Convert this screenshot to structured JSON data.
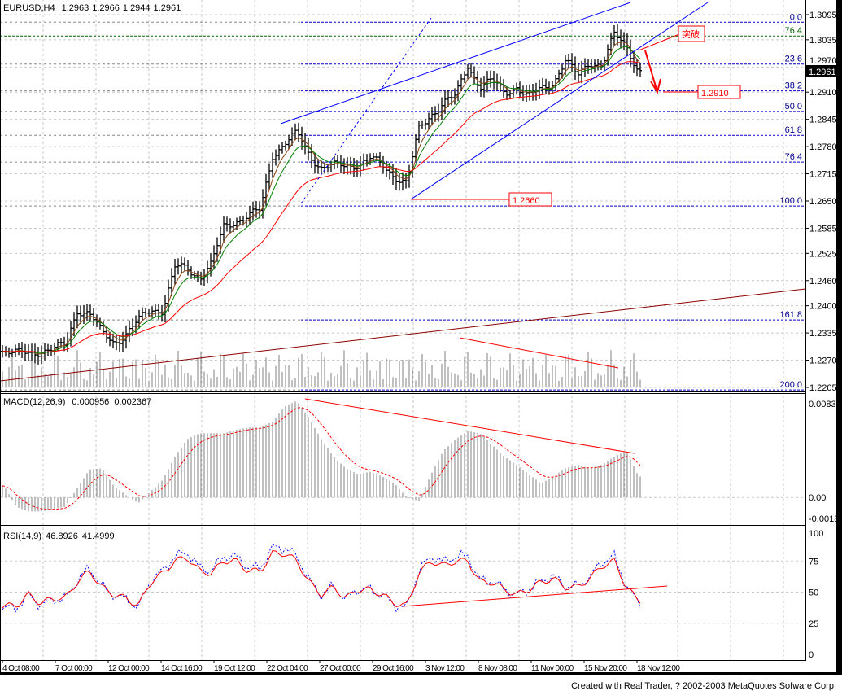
{
  "main": {
    "symbol": "EURUSD,H4",
    "open": "1.2963",
    "high": "1.2966",
    "low": "1.2944",
    "close": "1.2961",
    "current_price": "1.2961",
    "annotations": {
      "breakout": "突破",
      "target": "1.2910",
      "low": "1.2660"
    }
  },
  "macd": {
    "title": "MACD(12,26,9)",
    "value1": "0.000956",
    "value2": "0.002367"
  },
  "rsi": {
    "title": "RSI(14,9)",
    "value1": "46.8926",
    "value2": "41.4999"
  },
  "footer": "Created with Real Trader, ? 2002-2003 MetaQuotes Sofware Corp.",
  "colors": {
    "background": "#ffffff",
    "bars": "#000000",
    "fib": "#0000cc",
    "channel": "#0000ff",
    "annotation": "#ff0000",
    "ma_fast": "#8b4513",
    "ma_mid": "#008000",
    "ma_slow": "#ff0000",
    "long_trend": "#8b0000",
    "rsi_main": "#ff0000",
    "rsi_signal": "#0000ff"
  },
  "chart_data": [
    {
      "type": "line",
      "name": "EURUSD,H4",
      "ylim": [
        1.2205,
        1.3095
      ],
      "y_ticks": [
        "1.3095",
        "1.3035",
        "1.2970",
        "1.2910",
        "1.2845",
        "1.2780",
        "1.2715",
        "1.2650",
        "1.2585",
        "1.2525",
        "1.2460",
        "1.2400",
        "1.2335",
        "1.2270",
        "1.2205"
      ],
      "x_ticks": [
        "4 Oct 08:00",
        "7 Oct 00:00",
        "12 Oct 00:00",
        "14 Oct 16:00",
        "19 Oct 12:00",
        "22 Oct 04:00",
        "27 Oct 00:00",
        "29 Oct 16:00",
        "3 Nov 12:00",
        "8 Nov 08:00",
        "11 Nov 00:00",
        "15 Nov 20:00",
        "18 Nov 12:00"
      ],
      "close": [
        1.2295,
        1.2285,
        1.2285,
        1.2295,
        1.2295,
        1.2304,
        1.2392,
        1.2382,
        1.2333,
        1.2314,
        1.2333,
        1.2362,
        1.2392,
        1.2392,
        1.2489,
        1.2489,
        1.2469,
        1.2499,
        1.2586,
        1.2605,
        1.2615,
        1.2625,
        1.2761,
        1.279,
        1.2809,
        1.2761,
        1.2732,
        1.2732,
        1.2732,
        1.2741,
        1.2751,
        1.2732,
        1.2712,
        1.2693,
        1.2819,
        1.2858,
        1.2887,
        1.2897,
        1.2975,
        1.2926,
        1.2936,
        1.2907,
        1.2926,
        1.2897,
        1.2916,
        1.2936,
        1.2985,
        1.2946,
        1.2985,
        1.2975,
        1.3043,
        1.3023,
        1.2961
      ],
      "fibonacci": [
        {
          "label": "0.0",
          "price": 1.3077
        },
        {
          "label": "23.6",
          "price": 1.2977
        },
        {
          "label": "38.2",
          "price": 1.2913
        },
        {
          "label": "50.0",
          "price": 1.2864
        },
        {
          "label": "61.8",
          "price": 1.2807
        },
        {
          "label": "76.4",
          "price": 1.2743
        },
        {
          "label": "100.0",
          "price": 1.2638
        },
        {
          "label": "161.8",
          "price": 1.2366
        },
        {
          "label": "200.0",
          "price": 1.2199
        }
      ],
      "fib_upper": {
        "label": "76.4",
        "price": 1.3044
      }
    },
    {
      "type": "bar",
      "name": "MACD(12,26,9)",
      "ylim": [
        -0.0018,
        0.00839
      ],
      "y_ticks": [
        "0.00839",
        "0.00",
        "-0.0018"
      ],
      "values": [
        0.001,
        -0.0008,
        -0.0012,
        -0.0012,
        -0.001,
        -0.0008,
        0.0008,
        0.0024,
        0.0025,
        0.001,
        0.0002,
        -0.0005,
        0.0005,
        0.0015,
        0.0035,
        0.005,
        0.0055,
        0.0055,
        0.0055,
        0.0058,
        0.006,
        0.006,
        0.0065,
        0.0078,
        0.0083,
        0.0068,
        0.005,
        0.0035,
        0.0025,
        0.002,
        0.0022,
        0.0018,
        0.0012,
        0.0,
        -0.0003,
        0.002,
        0.004,
        0.005,
        0.0057,
        0.0055,
        0.0045,
        0.0035,
        0.0028,
        0.002,
        0.0012,
        0.0018,
        0.0025,
        0.0028,
        0.0025,
        0.0028,
        0.0035,
        0.004,
        0.0018
      ]
    },
    {
      "type": "line",
      "name": "RSI(14,9)",
      "ylim": [
        0,
        100
      ],
      "y_ticks": [
        "100",
        "75",
        "50",
        "25",
        "0"
      ],
      "values": [
        39,
        39,
        48,
        41,
        45,
        45,
        58,
        67,
        54,
        48,
        45,
        39,
        58,
        65,
        75,
        78,
        67,
        65,
        75,
        75,
        67,
        67,
        81,
        81,
        75,
        58,
        48,
        54,
        45,
        52,
        52,
        48,
        41,
        39,
        65,
        75,
        71,
        75,
        75,
        58,
        58,
        52,
        48,
        52,
        58,
        61,
        54,
        54,
        61,
        71,
        75,
        54,
        43
      ]
    }
  ]
}
